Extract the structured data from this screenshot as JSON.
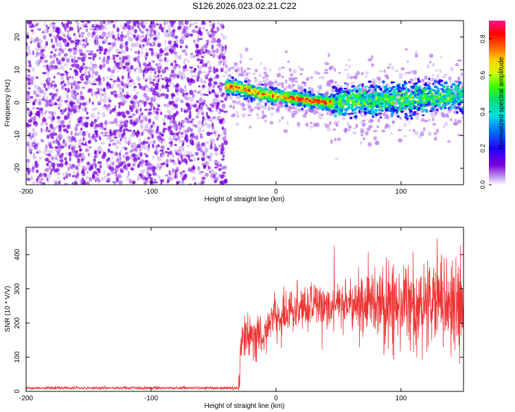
{
  "title": "S126.2026.023.02.21.C22",
  "chart_data": [
    {
      "type": "heatmap",
      "name": "spectrogram",
      "xlabel": "Height of straight line (km)",
      "ylabel": "Frequency (Hz)",
      "xlim": [
        -200,
        150
      ],
      "ylim": [
        -25,
        25
      ],
      "xticks": [
        -200,
        -100,
        0,
        100
      ],
      "yticks": [
        -20,
        -10,
        0,
        10,
        20
      ],
      "noise_region_end_km": -40,
      "ridge_center_hz": [
        {
          "x": -40,
          "y": 5
        },
        {
          "x": -30,
          "y": 4.5
        },
        {
          "x": -20,
          "y": 3.5
        },
        {
          "x": -10,
          "y": 2.5
        },
        {
          "x": 0,
          "y": 2
        },
        {
          "x": 10,
          "y": 1.5
        },
        {
          "x": 20,
          "y": 1
        },
        {
          "x": 30,
          "y": 0.5
        },
        {
          "x": 45,
          "y": 0
        },
        {
          "x": 60,
          "y": 1
        },
        {
          "x": 80,
          "y": 0.5
        },
        {
          "x": 100,
          "y": 1
        },
        {
          "x": 120,
          "y": 1.5
        },
        {
          "x": 150,
          "y": 2
        }
      ],
      "colorbar": {
        "label": "Normalized spectral amplitude",
        "range": [
          0.0,
          0.9
        ],
        "ticks": [
          0.0,
          0.2,
          0.4,
          0.6,
          0.8
        ],
        "tick_labels": [
          "0.0",
          "0.2",
          "0.4",
          "0.6",
          "0.8"
        ]
      }
    },
    {
      "type": "line",
      "name": "snr",
      "xlabel": "Height of straight line (km)",
      "ylabel": "SNR (10 * V/V)",
      "xlim": [
        -200,
        150
      ],
      "ylim": [
        0,
        480
      ],
      "xticks": [
        -200,
        -100,
        0,
        100
      ],
      "yticks": [
        0,
        100,
        200,
        300,
        400
      ],
      "color": "#ee3333",
      "series": [
        {
          "name": "SNR",
          "baseline": [
            {
              "x": -200,
              "y": 10
            },
            {
              "x": -30,
              "y": 10
            }
          ],
          "trend": [
            {
              "x": -30,
              "y": 10
            },
            {
              "x": -28,
              "y": 150
            },
            {
              "x": -20,
              "y": 165
            },
            {
              "x": -10,
              "y": 180
            },
            {
              "x": 0,
              "y": 215
            },
            {
              "x": 10,
              "y": 235
            },
            {
              "x": 20,
              "y": 245
            },
            {
              "x": 30,
              "y": 255
            },
            {
              "x": 50,
              "y": 260
            },
            {
              "x": 80,
              "y": 255
            },
            {
              "x": 100,
              "y": 250
            },
            {
              "x": 120,
              "y": 255
            },
            {
              "x": 150,
              "y": 255
            }
          ]
        }
      ]
    }
  ]
}
